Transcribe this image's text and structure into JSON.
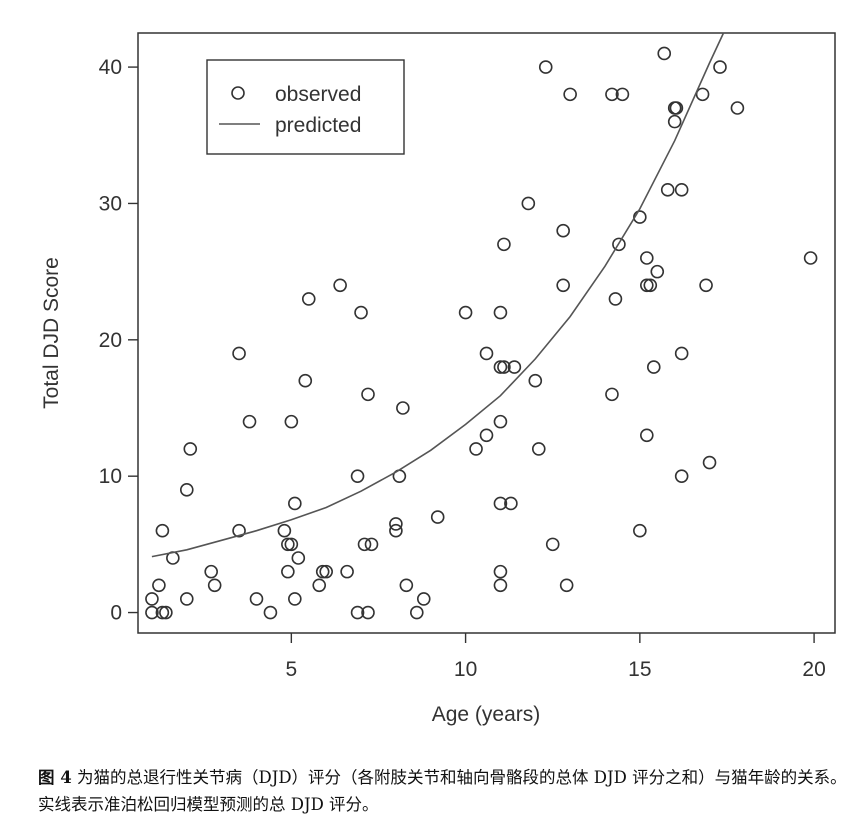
{
  "chart_data": {
    "type": "scatter",
    "xlabel": "Age (years)",
    "ylabel": "Total DJD Score",
    "xlim": [
      0.6,
      20.6
    ],
    "ylim": [
      -1.5,
      42.5
    ],
    "xticks": [
      5,
      10,
      15,
      20
    ],
    "yticks": [
      0,
      10,
      20,
      30,
      40
    ],
    "xtick_labels": [
      "5",
      "10",
      "15",
      "20"
    ],
    "ytick_labels": [
      "0",
      "10",
      "20",
      "30",
      "40"
    ],
    "grid": false,
    "legend_position": "top-left",
    "legend": {
      "observed": "observed",
      "predicted": "predicted"
    },
    "series": [
      {
        "name": "observed",
        "style": "open-circle",
        "points": [
          [
            1.0,
            1
          ],
          [
            1.0,
            0
          ],
          [
            1.2,
            2
          ],
          [
            1.3,
            6
          ],
          [
            1.3,
            0
          ],
          [
            1.4,
            0
          ],
          [
            1.6,
            4
          ],
          [
            2.0,
            1
          ],
          [
            2.0,
            9
          ],
          [
            2.1,
            12
          ],
          [
            2.7,
            3
          ],
          [
            2.8,
            2
          ],
          [
            3.5,
            19
          ],
          [
            3.5,
            6
          ],
          [
            3.8,
            14
          ],
          [
            4.0,
            1
          ],
          [
            4.4,
            0
          ],
          [
            4.8,
            6
          ],
          [
            4.9,
            3
          ],
          [
            4.9,
            5
          ],
          [
            5.0,
            14
          ],
          [
            5.0,
            5
          ],
          [
            5.1,
            8
          ],
          [
            5.1,
            1
          ],
          [
            5.2,
            4
          ],
          [
            5.4,
            17
          ],
          [
            5.5,
            23
          ],
          [
            5.8,
            2
          ],
          [
            5.9,
            3
          ],
          [
            6.0,
            3
          ],
          [
            6.4,
            24
          ],
          [
            6.6,
            3
          ],
          [
            6.9,
            10
          ],
          [
            6.9,
            0
          ],
          [
            7.0,
            22
          ],
          [
            7.1,
            5
          ],
          [
            7.2,
            16
          ],
          [
            7.2,
            0
          ],
          [
            7.3,
            5
          ],
          [
            8.0,
            6.5
          ],
          [
            8.0,
            6
          ],
          [
            8.1,
            10
          ],
          [
            8.2,
            15
          ],
          [
            8.3,
            2
          ],
          [
            8.6,
            0
          ],
          [
            8.8,
            1
          ],
          [
            9.2,
            7
          ],
          [
            10.0,
            22
          ],
          [
            10.3,
            12
          ],
          [
            10.6,
            13
          ],
          [
            10.6,
            19
          ],
          [
            11.0,
            22
          ],
          [
            11.0,
            18
          ],
          [
            11.0,
            14
          ],
          [
            11.0,
            8
          ],
          [
            11.0,
            3
          ],
          [
            11.0,
            2
          ],
          [
            11.1,
            27
          ],
          [
            11.1,
            18
          ],
          [
            11.3,
            8
          ],
          [
            11.4,
            18
          ],
          [
            11.8,
            30
          ],
          [
            12.0,
            17
          ],
          [
            12.1,
            12
          ],
          [
            12.3,
            40
          ],
          [
            12.5,
            5
          ],
          [
            12.8,
            28
          ],
          [
            12.8,
            24
          ],
          [
            12.9,
            2
          ],
          [
            13.0,
            38
          ],
          [
            14.2,
            38
          ],
          [
            14.2,
            16
          ],
          [
            14.3,
            23
          ],
          [
            14.4,
            27
          ],
          [
            14.5,
            38
          ],
          [
            15.0,
            29
          ],
          [
            15.0,
            6
          ],
          [
            15.2,
            26
          ],
          [
            15.2,
            24
          ],
          [
            15.2,
            13
          ],
          [
            15.3,
            24
          ],
          [
            15.4,
            18
          ],
          [
            15.5,
            25
          ],
          [
            15.7,
            41
          ],
          [
            15.8,
            31
          ],
          [
            16.0,
            37
          ],
          [
            16.0,
            36
          ],
          [
            16.05,
            37
          ],
          [
            16.2,
            31
          ],
          [
            16.2,
            19
          ],
          [
            16.2,
            10
          ],
          [
            16.8,
            38
          ],
          [
            16.9,
            24
          ],
          [
            17.0,
            11
          ],
          [
            17.3,
            40
          ],
          [
            17.8,
            37
          ],
          [
            19.9,
            26
          ]
        ]
      },
      {
        "name": "predicted",
        "style": "line",
        "points": [
          [
            1,
            4.1
          ],
          [
            2,
            4.6
          ],
          [
            3,
            5.3
          ],
          [
            4,
            6.0
          ],
          [
            5,
            6.8
          ],
          [
            6,
            7.7
          ],
          [
            7,
            8.9
          ],
          [
            8,
            10.3
          ],
          [
            9,
            11.9
          ],
          [
            10,
            13.8
          ],
          [
            11,
            15.9
          ],
          [
            12,
            18.6
          ],
          [
            13,
            21.7
          ],
          [
            14,
            25.4
          ],
          [
            15,
            29.6
          ],
          [
            16,
            34.6
          ],
          [
            17,
            40.3
          ],
          [
            17.4,
            42.5
          ]
        ]
      }
    ]
  },
  "caption": {
    "label": "图 4",
    "text": " 为猫的总退行性关节病（DJD）评分（各附肢关节和轴向骨骼段的总体 DJD 评分之和）与猫年龄的关系。实线表示准泊松回归模型预测的总 DJD 评分。"
  }
}
